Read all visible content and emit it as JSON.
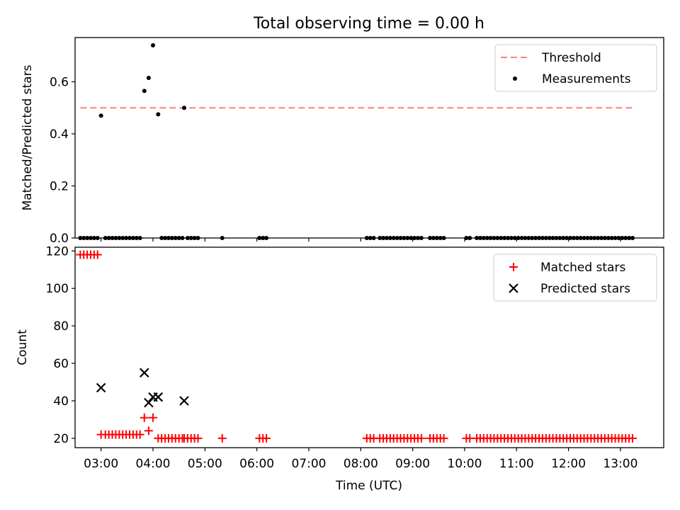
{
  "title": "Total observing time = 0.00 h",
  "xlabel": "Time (UTC)",
  "xticks": [
    "03:00",
    "04:00",
    "05:00",
    "06:00",
    "07:00",
    "08:00",
    "09:00",
    "10:00",
    "11:00",
    "12:00",
    "13:00"
  ],
  "colors": {
    "threshold": "#ff7f7f",
    "measurement": "#000000",
    "matched": "#ff0000",
    "predicted": "#000000"
  },
  "chart_data": [
    {
      "type": "scatter",
      "ylabel": "Matched/Predicted stars",
      "xlim": [
        "02:30",
        "13:50"
      ],
      "ylim": [
        0,
        0.77
      ],
      "yticks": [
        "0.0",
        "0.2",
        "0.4",
        "0.6"
      ],
      "legend": "top-right",
      "threshold": {
        "name": "Threshold",
        "y": 0.5,
        "x_range": [
          "02:36",
          "13:15"
        ]
      },
      "series": [
        {
          "name": "Measurements",
          "points": [
            [
              "02:36",
              0
            ],
            [
              "02:40",
              0
            ],
            [
              "02:44",
              0
            ],
            [
              "02:48",
              0
            ],
            [
              "02:52",
              0
            ],
            [
              "02:56",
              0
            ],
            [
              "03:00",
              0.47
            ],
            [
              "03:05",
              0
            ],
            [
              "03:09",
              0
            ],
            [
              "03:13",
              0
            ],
            [
              "03:17",
              0
            ],
            [
              "03:21",
              0
            ],
            [
              "03:25",
              0
            ],
            [
              "03:29",
              0
            ],
            [
              "03:33",
              0
            ],
            [
              "03:37",
              0
            ],
            [
              "03:41",
              0
            ],
            [
              "03:45",
              0
            ],
            [
              "03:50",
              0.565
            ],
            [
              "03:55",
              0.615
            ],
            [
              "04:00",
              0.74
            ],
            [
              "04:06",
              0.475
            ],
            [
              "04:10",
              0
            ],
            [
              "04:14",
              0
            ],
            [
              "04:18",
              0
            ],
            [
              "04:22",
              0
            ],
            [
              "04:26",
              0
            ],
            [
              "04:30",
              0
            ],
            [
              "04:34",
              0
            ],
            [
              "04:36",
              0.5
            ],
            [
              "04:40",
              0
            ],
            [
              "04:44",
              0
            ],
            [
              "04:48",
              0
            ],
            [
              "04:52",
              0
            ],
            [
              "05:20",
              0
            ],
            [
              "06:03",
              0
            ],
            [
              "06:07",
              0
            ],
            [
              "06:11",
              0
            ],
            [
              "08:07",
              0
            ],
            [
              "08:11",
              0
            ],
            [
              "08:15",
              0
            ],
            [
              "08:22",
              0
            ],
            [
              "08:26",
              0
            ],
            [
              "08:30",
              0
            ],
            [
              "08:34",
              0
            ],
            [
              "08:38",
              0
            ],
            [
              "08:42",
              0
            ],
            [
              "08:46",
              0
            ],
            [
              "08:50",
              0
            ],
            [
              "08:54",
              0
            ],
            [
              "08:58",
              0
            ],
            [
              "09:02",
              0
            ],
            [
              "09:06",
              0
            ],
            [
              "09:10",
              0
            ],
            [
              "09:20",
              0
            ],
            [
              "09:24",
              0
            ],
            [
              "09:28",
              0
            ],
            [
              "09:32",
              0
            ],
            [
              "09:36",
              0
            ],
            [
              "10:02",
              0
            ],
            [
              "10:06",
              0
            ],
            [
              "10:14",
              0
            ],
            [
              "10:18",
              0
            ],
            [
              "10:22",
              0
            ],
            [
              "10:26",
              0
            ],
            [
              "10:30",
              0
            ],
            [
              "10:34",
              0
            ],
            [
              "10:38",
              0
            ],
            [
              "10:42",
              0
            ],
            [
              "10:46",
              0
            ],
            [
              "10:50",
              0
            ],
            [
              "10:54",
              0
            ],
            [
              "10:58",
              0
            ],
            [
              "11:02",
              0
            ],
            [
              "11:06",
              0
            ],
            [
              "11:10",
              0
            ],
            [
              "11:14",
              0
            ],
            [
              "11:18",
              0
            ],
            [
              "11:22",
              0
            ],
            [
              "11:26",
              0
            ],
            [
              "11:30",
              0
            ],
            [
              "11:34",
              0
            ],
            [
              "11:38",
              0
            ],
            [
              "11:42",
              0
            ],
            [
              "11:46",
              0
            ],
            [
              "11:50",
              0
            ],
            [
              "11:54",
              0
            ],
            [
              "11:58",
              0
            ],
            [
              "12:02",
              0
            ],
            [
              "12:06",
              0
            ],
            [
              "12:10",
              0
            ],
            [
              "12:14",
              0
            ],
            [
              "12:18",
              0
            ],
            [
              "12:22",
              0
            ],
            [
              "12:26",
              0
            ],
            [
              "12:30",
              0
            ],
            [
              "12:34",
              0
            ],
            [
              "12:38",
              0
            ],
            [
              "12:42",
              0
            ],
            [
              "12:46",
              0
            ],
            [
              "12:50",
              0
            ],
            [
              "12:54",
              0
            ],
            [
              "12:58",
              0
            ],
            [
              "13:02",
              0
            ],
            [
              "13:06",
              0
            ],
            [
              "13:10",
              0
            ],
            [
              "13:14",
              0
            ]
          ]
        }
      ]
    },
    {
      "type": "scatter",
      "ylabel": "Count",
      "xlim": [
        "02:30",
        "13:50"
      ],
      "ylim": [
        15,
        122
      ],
      "yticks": [
        "20",
        "40",
        "60",
        "80",
        "100",
        "120"
      ],
      "legend": "top-right",
      "series": [
        {
          "name": "Matched stars",
          "marker": "+",
          "points": [
            [
              "02:36",
              118
            ],
            [
              "02:40",
              118
            ],
            [
              "02:44",
              118
            ],
            [
              "02:48",
              118
            ],
            [
              "02:52",
              118
            ],
            [
              "02:56",
              118
            ],
            [
              "03:00",
              22
            ],
            [
              "03:05",
              22
            ],
            [
              "03:09",
              22
            ],
            [
              "03:13",
              22
            ],
            [
              "03:17",
              22
            ],
            [
              "03:21",
              22
            ],
            [
              "03:25",
              22
            ],
            [
              "03:29",
              22
            ],
            [
              "03:33",
              22
            ],
            [
              "03:37",
              22
            ],
            [
              "03:41",
              22
            ],
            [
              "03:45",
              22
            ],
            [
              "03:50",
              31
            ],
            [
              "03:55",
              24
            ],
            [
              "04:00",
              31
            ],
            [
              "04:06",
              20
            ],
            [
              "04:10",
              20
            ],
            [
              "04:14",
              20
            ],
            [
              "04:18",
              20
            ],
            [
              "04:22",
              20
            ],
            [
              "04:26",
              20
            ],
            [
              "04:30",
              20
            ],
            [
              "04:34",
              20
            ],
            [
              "04:36",
              20
            ],
            [
              "04:40",
              20
            ],
            [
              "04:44",
              20
            ],
            [
              "04:48",
              20
            ],
            [
              "04:52",
              20
            ],
            [
              "05:20",
              20
            ],
            [
              "06:03",
              20
            ],
            [
              "06:07",
              20
            ],
            [
              "06:11",
              20
            ],
            [
              "08:07",
              20
            ],
            [
              "08:11",
              20
            ],
            [
              "08:15",
              20
            ],
            [
              "08:22",
              20
            ],
            [
              "08:26",
              20
            ],
            [
              "08:30",
              20
            ],
            [
              "08:34",
              20
            ],
            [
              "08:38",
              20
            ],
            [
              "08:42",
              20
            ],
            [
              "08:46",
              20
            ],
            [
              "08:50",
              20
            ],
            [
              "08:54",
              20
            ],
            [
              "08:58",
              20
            ],
            [
              "09:02",
              20
            ],
            [
              "09:06",
              20
            ],
            [
              "09:10",
              20
            ],
            [
              "09:20",
              20
            ],
            [
              "09:24",
              20
            ],
            [
              "09:28",
              20
            ],
            [
              "09:32",
              20
            ],
            [
              "09:36",
              20
            ],
            [
              "10:02",
              20
            ],
            [
              "10:06",
              20
            ],
            [
              "10:14",
              20
            ],
            [
              "10:18",
              20
            ],
            [
              "10:22",
              20
            ],
            [
              "10:26",
              20
            ],
            [
              "10:30",
              20
            ],
            [
              "10:34",
              20
            ],
            [
              "10:38",
              20
            ],
            [
              "10:42",
              20
            ],
            [
              "10:46",
              20
            ],
            [
              "10:50",
              20
            ],
            [
              "10:54",
              20
            ],
            [
              "10:58",
              20
            ],
            [
              "11:02",
              20
            ],
            [
              "11:06",
              20
            ],
            [
              "11:10",
              20
            ],
            [
              "11:14",
              20
            ],
            [
              "11:18",
              20
            ],
            [
              "11:22",
              20
            ],
            [
              "11:26",
              20
            ],
            [
              "11:30",
              20
            ],
            [
              "11:34",
              20
            ],
            [
              "11:38",
              20
            ],
            [
              "11:42",
              20
            ],
            [
              "11:46",
              20
            ],
            [
              "11:50",
              20
            ],
            [
              "11:54",
              20
            ],
            [
              "11:58",
              20
            ],
            [
              "12:02",
              20
            ],
            [
              "12:06",
              20
            ],
            [
              "12:10",
              20
            ],
            [
              "12:14",
              20
            ],
            [
              "12:18",
              20
            ],
            [
              "12:22",
              20
            ],
            [
              "12:26",
              20
            ],
            [
              "12:30",
              20
            ],
            [
              "12:34",
              20
            ],
            [
              "12:38",
              20
            ],
            [
              "12:42",
              20
            ],
            [
              "12:46",
              20
            ],
            [
              "12:50",
              20
            ],
            [
              "12:54",
              20
            ],
            [
              "12:58",
              20
            ],
            [
              "13:02",
              20
            ],
            [
              "13:06",
              20
            ],
            [
              "13:10",
              20
            ],
            [
              "13:14",
              20
            ]
          ]
        },
        {
          "name": "Predicted stars",
          "marker": "x",
          "points": [
            [
              "03:00",
              47
            ],
            [
              "03:50",
              55
            ],
            [
              "03:55",
              39
            ],
            [
              "04:00",
              42
            ],
            [
              "04:06",
              42
            ],
            [
              "04:36",
              40
            ]
          ]
        }
      ]
    }
  ]
}
